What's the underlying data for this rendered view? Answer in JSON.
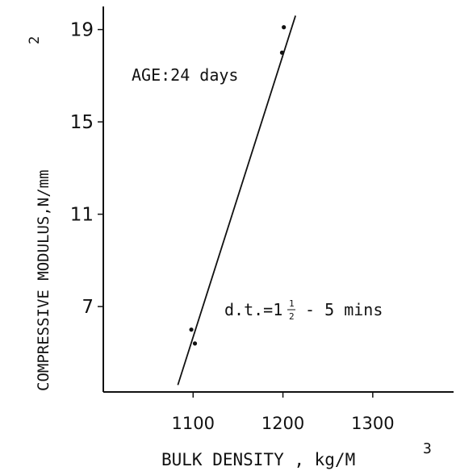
{
  "chart_data": {
    "type": "scatter",
    "title": "",
    "xlabel": "BULK DENSITY , kg/M",
    "xlabel_sup": "3",
    "ylabel": "COMPRESSIVE MODULUS,N/mm",
    "ylabel_sup": "2",
    "xlim": [
      1000,
      1390
    ],
    "ylim": [
      3.3,
      20
    ],
    "x_ticks": [
      {
        "value": 1100,
        "label": "1100"
      },
      {
        "value": 1200,
        "label": "1200"
      },
      {
        "value": 1300,
        "label": "1300"
      }
    ],
    "y_ticks": [
      {
        "value": 19,
        "label": "19"
      },
      {
        "value": 15,
        "label": "15"
      },
      {
        "value": 11,
        "label": "11"
      },
      {
        "value": 7,
        "label": "7"
      }
    ],
    "grid": false,
    "points": [
      {
        "x": 1098,
        "y": 6.0
      },
      {
        "x": 1102,
        "y": 5.4
      },
      {
        "x": 1201,
        "y": 19.1
      },
      {
        "x": 1199,
        "y": 18.0
      }
    ],
    "fit_line": [
      {
        "x": 1083,
        "y": 3.6
      },
      {
        "x": 1214,
        "y": 19.6
      }
    ],
    "annotations": [
      {
        "text": "AGE:24 days"
      },
      {
        "text_main": "d.t.=1",
        "frac_num": "1",
        "frac_den": "2",
        "text_rest": " - 5 mins"
      }
    ]
  }
}
